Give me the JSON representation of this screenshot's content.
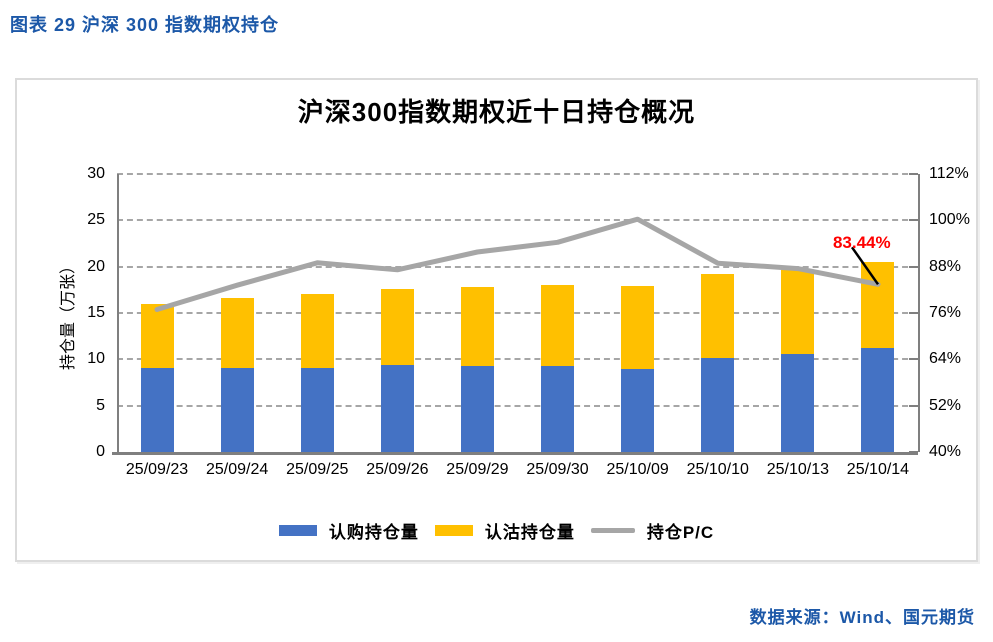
{
  "page": {
    "caption": "图表 29 沪深 300 指数期权持仓",
    "footer": "数据来源：Wind、国元期货",
    "accent_blue": "#1C58A8"
  },
  "chart_data": {
    "type": "bar",
    "subtype": "stacked-bars-with-line",
    "title": "沪深300指数期权近十日持仓概况",
    "categories": [
      "25/09/23",
      "25/09/24",
      "25/09/25",
      "25/09/26",
      "25/09/29",
      "25/09/30",
      "25/10/09",
      "25/10/10",
      "25/10/13",
      "25/10/14"
    ],
    "series": [
      {
        "name": "认购持仓量",
        "type": "bar",
        "stack": true,
        "color": "#4472C4",
        "values": [
          9.1,
          9.1,
          9.1,
          9.4,
          9.3,
          9.3,
          9.0,
          10.1,
          10.6,
          11.2
        ]
      },
      {
        "name": "认沽持仓量",
        "type": "bar",
        "stack": true,
        "color": "#FFC000",
        "values": [
          6.9,
          7.5,
          8.0,
          8.2,
          8.5,
          8.7,
          8.9,
          9.1,
          9.0,
          9.3
        ]
      },
      {
        "name": "持仓P/C",
        "type": "line",
        "axis": "right",
        "color": "#A6A6A6",
        "values": [
          76.9,
          83.2,
          89.0,
          87.2,
          91.8,
          94.3,
          100.3,
          88.9,
          87.5,
          83.44
        ]
      }
    ],
    "ylabel_left": "持仓量（万张）",
    "y_left": {
      "min": 0,
      "max": 30,
      "step": 5,
      "tick_labels": [
        "0",
        "5",
        "10",
        "15",
        "20",
        "25",
        "30"
      ]
    },
    "y_right": {
      "min": 40,
      "max": 112,
      "step": 12,
      "tick_labels": [
        "40%",
        "52%",
        "64%",
        "76%",
        "88%",
        "100%",
        "112%"
      ]
    },
    "annotation": {
      "text": "83.44%",
      "color": "#FF0000",
      "target_index": 9
    },
    "legend_position": "bottom",
    "grid": "horizontal-dashed"
  }
}
